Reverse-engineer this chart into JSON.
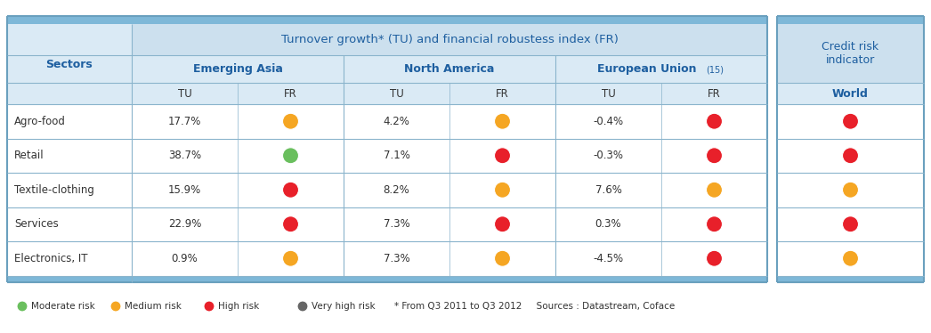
{
  "title_main": "Turnover growth* (TU) and financial robustess index (FR)",
  "title_credit": "Credit risk\nindicator",
  "header_regions": [
    "Emerging Asia",
    "North America",
    "European Union"
  ],
  "eu_superscript": "(15)",
  "subheader": [
    "TU",
    "FR",
    "TU",
    "FR",
    "TU",
    "FR"
  ],
  "world_label": "World",
  "sectors_label": "Sectors",
  "sectors": [
    "Agro-food",
    "Retail",
    "Textile-clothing",
    "Services",
    "Electronics, IT"
  ],
  "tu_emerging": [
    "17.7%",
    "38.7%",
    "15.9%",
    "22.9%",
    "0.9%"
  ],
  "tu_north": [
    "4.2%",
    "7.1%",
    "8.2%",
    "7.3%",
    "7.3%"
  ],
  "tu_eu": [
    "-0.4%",
    "-0.3%",
    "7.6%",
    "0.3%",
    "-4.5%"
  ],
  "fr_emerging": [
    "orange",
    "green",
    "red",
    "red",
    "orange"
  ],
  "fr_north": [
    "orange",
    "red",
    "orange",
    "red",
    "orange"
  ],
  "fr_eu": [
    "red",
    "red",
    "orange",
    "red",
    "red"
  ],
  "world": [
    "red",
    "red",
    "orange",
    "red",
    "orange"
  ],
  "colors": {
    "green": "#6abf5e",
    "orange": "#f5a623",
    "red": "#e8202a",
    "dark_gray": "#666666"
  },
  "bg_header_dark": "#7eb8d8",
  "bg_header_light": "#cce0ee",
  "bg_subheader": "#daeaf5",
  "bg_white": "#ffffff",
  "text_blue": "#1e5fa0",
  "text_dark": "#333333",
  "border_color": "#8ab4cc",
  "border_thick": "#6aa0be",
  "legend_items": [
    "Moderate risk",
    "Medium risk",
    "High risk",
    "Very high risk"
  ],
  "legend_colors": [
    "#6abf5e",
    "#f5a623",
    "#e8202a",
    "#666666"
  ],
  "footnote": "* From Q3 2011 to Q3 2012     Sources : Datastream, Coface"
}
